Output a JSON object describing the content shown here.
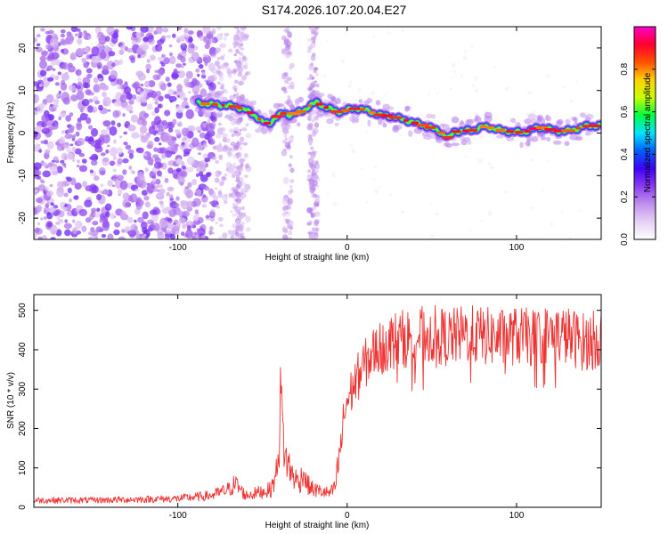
{
  "title": "S174.2026.107.20.04.E27",
  "chart_data": [
    {
      "type": "heatmap",
      "xlabel": "Height of straight line (km)",
      "ylabel": "Frequency (Hz)",
      "xlim": [
        -185,
        150
      ],
      "ylim": [
        -25,
        25
      ],
      "x_ticks": [
        -100,
        0,
        100
      ],
      "x_tick_labels": [
        "-100",
        "0",
        "100"
      ],
      "y_ticks": [
        -20,
        -10,
        0,
        10,
        20
      ],
      "y_tick_labels": [
        "-20",
        "-10",
        "0",
        "10",
        "20"
      ],
      "ridge": {
        "x": [
          -88,
          -80,
          -72,
          -66,
          -60,
          -54,
          -50,
          -46,
          -42,
          -38,
          -34,
          -30,
          -26,
          -22,
          -18,
          -14,
          -10,
          -6,
          -2,
          2,
          6,
          10,
          15,
          20,
          25,
          30,
          35,
          40,
          45,
          50,
          55,
          58,
          60,
          63,
          68,
          74,
          80,
          86,
          92,
          98,
          104,
          110,
          116,
          122,
          128,
          134,
          140,
          146,
          150
        ],
        "y": [
          7,
          6.8,
          6.5,
          6.2,
          5.5,
          4,
          2.6,
          2.2,
          3.8,
          4.6,
          4.3,
          4.7,
          5.2,
          6.5,
          7.2,
          6.2,
          5.7,
          5,
          5.2,
          5.6,
          5.8,
          5.5,
          4.8,
          4.2,
          4,
          3.5,
          3,
          2.4,
          1.8,
          1.2,
          0.2,
          -0.6,
          -1.3,
          0.3,
          0.5,
          0.6,
          1.5,
          1.2,
          0.5,
          0.3,
          0.1,
          1,
          1.3,
          0.6,
          0.4,
          0.8,
          1.6,
          1.7,
          1.8
        ]
      },
      "colorbar": {
        "label": "Normalized spectral amplitude",
        "range": [
          0,
          1
        ],
        "ticks": [
          0,
          0.2,
          0.4,
          0.6,
          0.8
        ],
        "tick_labels": [
          "0.0",
          "0.2",
          "0.4",
          "0.6",
          "0.8"
        ],
        "colormap": [
          "#ffffff",
          "#e6d0f5",
          "#c090ec",
          "#8a3df0",
          "#4000ff",
          "#0060ff",
          "#00e5ff",
          "#00ff40",
          "#c8ff00",
          "#ffd000",
          "#ff5000",
          "#ff0030",
          "#ff00c8"
        ]
      }
    },
    {
      "type": "line",
      "xlabel": "Height of straight line (km)",
      "ylabel": "SNR (10 * v/v)",
      "xlim": [
        -185,
        150
      ],
      "ylim": [
        0,
        540
      ],
      "x_ticks": [
        -100,
        0,
        100
      ],
      "x_tick_labels": [
        "-100",
        "0",
        "100"
      ],
      "y_ticks": [
        0,
        100,
        200,
        300,
        400,
        500
      ],
      "y_tick_labels": [
        "0",
        "100",
        "200",
        "300",
        "400",
        "500"
      ],
      "color": "#ee3333",
      "series": [
        {
          "name": "SNR",
          "x": [
            -185,
            -150,
            -100,
            -80,
            -70,
            -66,
            -60,
            -55,
            -45,
            -42,
            -40,
            -39,
            -38,
            -36,
            -32,
            -28,
            -26,
            -24,
            -20,
            -15,
            -10,
            -7,
            -5,
            -3,
            -2,
            0,
            5,
            10,
            15,
            20,
            25,
            30,
            40,
            50,
            60,
            70,
            80,
            90,
            100,
            110,
            120,
            130,
            140,
            150
          ],
          "values": [
            18,
            18,
            22,
            30,
            45,
            60,
            30,
            35,
            45,
            80,
            180,
            300,
            180,
            120,
            80,
            60,
            95,
            60,
            45,
            40,
            35,
            50,
            120,
            180,
            230,
            270,
            320,
            360,
            390,
            410,
            420,
            425,
            435,
            440,
            430,
            440,
            435,
            430,
            435,
            430,
            440,
            435,
            420,
            430
          ]
        }
      ]
    }
  ]
}
